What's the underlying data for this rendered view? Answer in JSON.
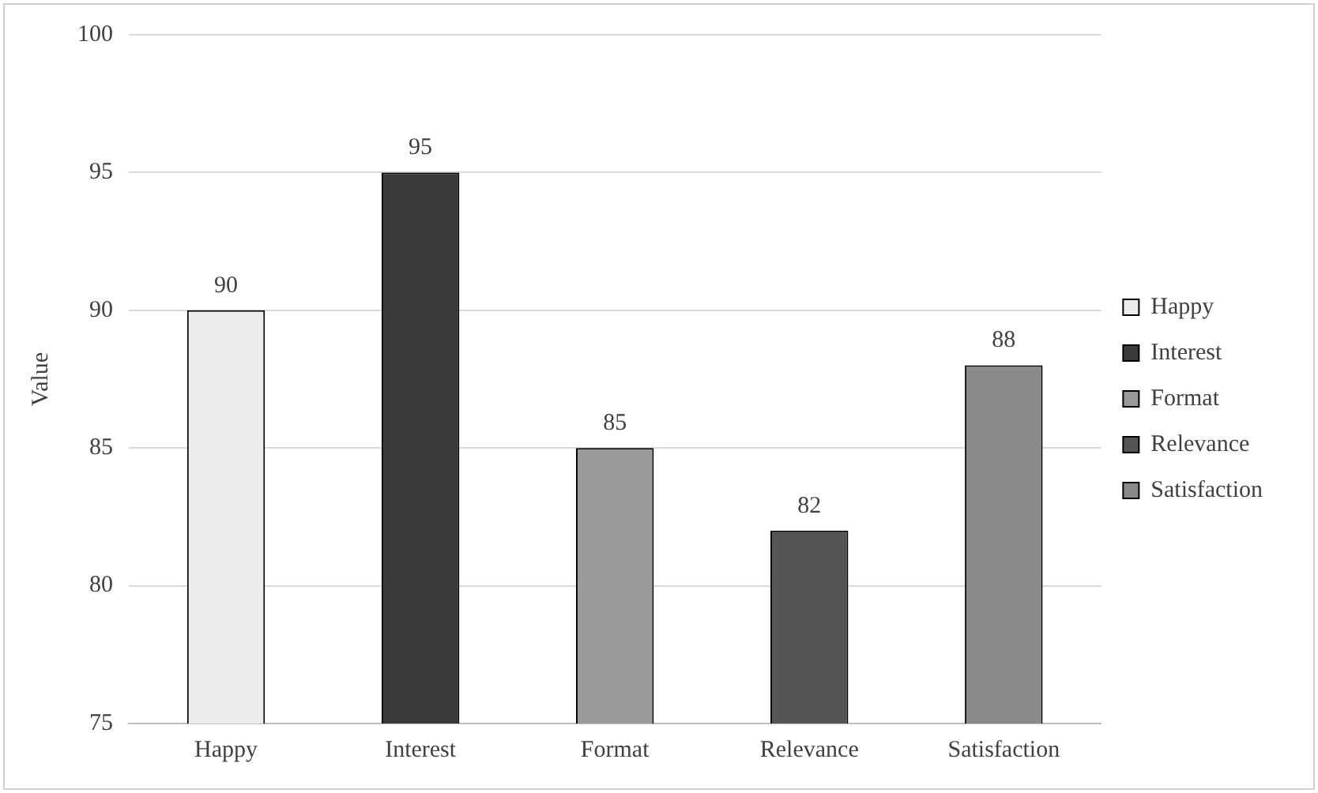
{
  "chart_data": {
    "type": "bar",
    "ylabel": "Value",
    "categories": [
      "Happy",
      "Interest",
      "Format",
      "Relevance",
      "Satisfaction"
    ],
    "series": [
      {
        "name": "Happy",
        "color": "#ececec",
        "values": [
          90,
          null,
          null,
          null,
          null
        ]
      },
      {
        "name": "Interest",
        "color": "#3a3a3a",
        "values": [
          null,
          95,
          null,
          null,
          null
        ]
      },
      {
        "name": "Format",
        "color": "#9a9a9a",
        "values": [
          null,
          null,
          85,
          null,
          null
        ]
      },
      {
        "name": "Relevance",
        "color": "#555555",
        "values": [
          null,
          null,
          null,
          82,
          null
        ]
      },
      {
        "name": "Satisfaction",
        "color": "#8a8a8a",
        "values": [
          null,
          null,
          null,
          null,
          88
        ]
      }
    ],
    "ylim": [
      75,
      100
    ],
    "yticks": [
      75,
      80,
      85,
      90,
      95,
      100
    ],
    "grid": "y",
    "legend": "right",
    "data_labels": true
  }
}
